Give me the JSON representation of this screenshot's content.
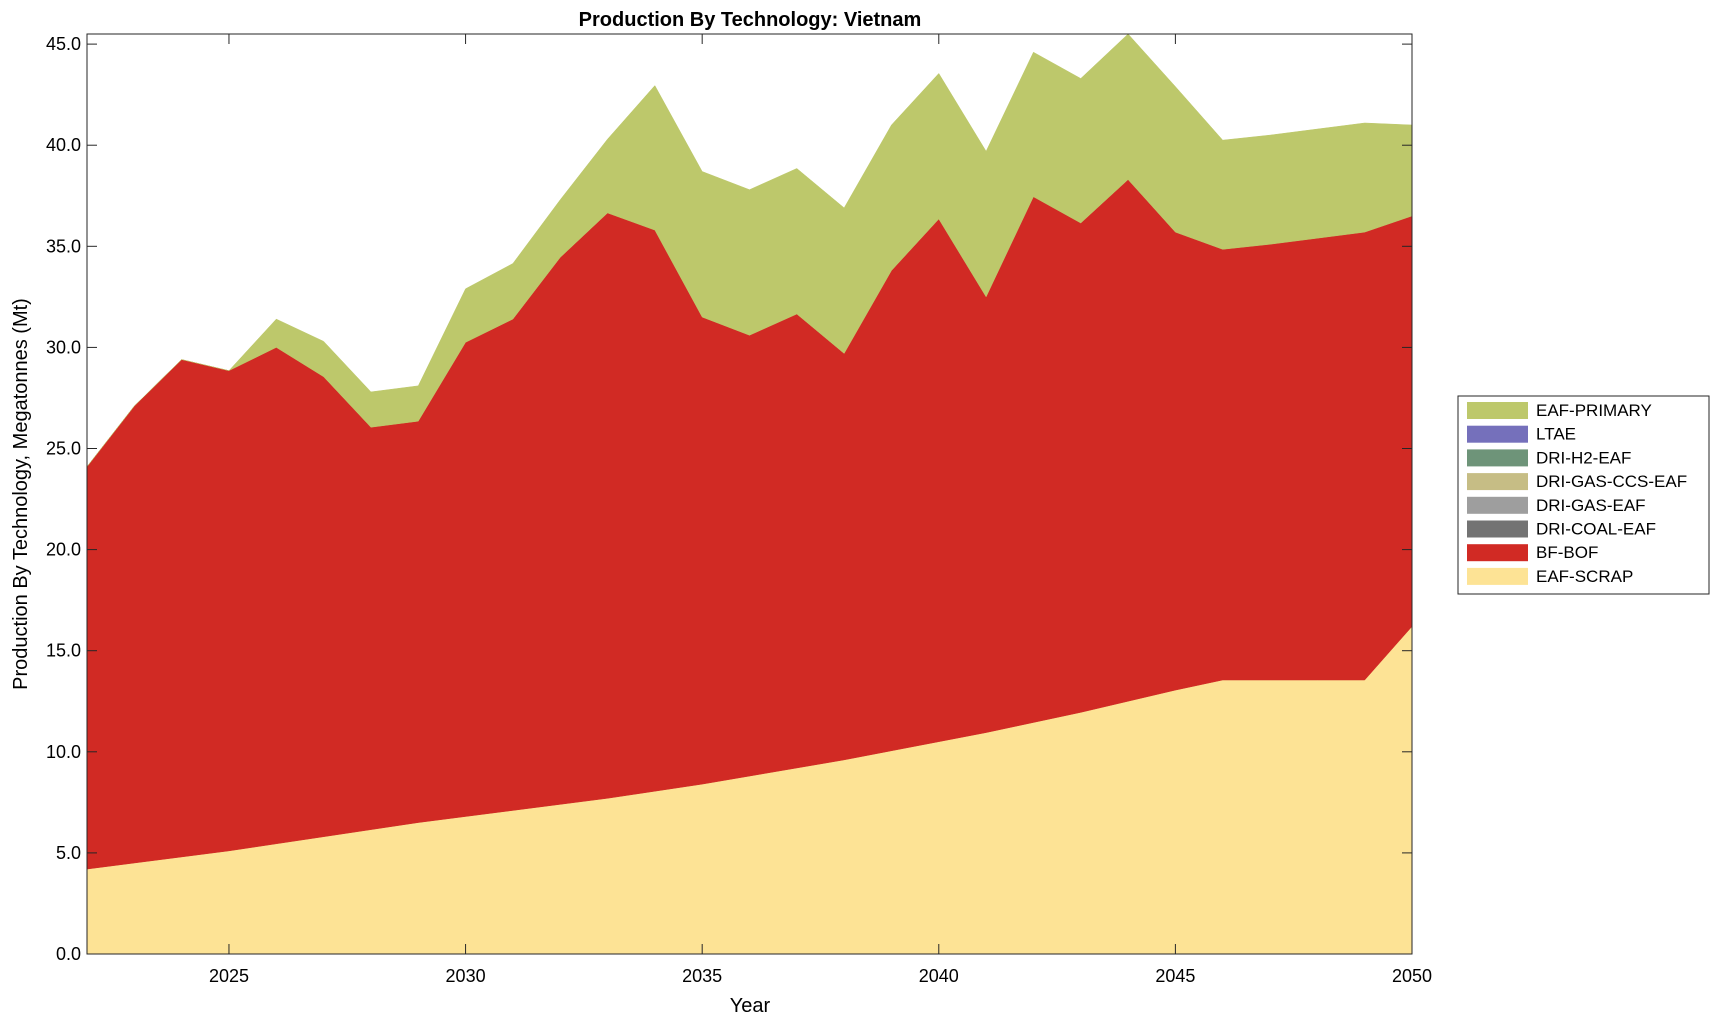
{
  "chart_data": {
    "type": "area",
    "stacked": true,
    "title": "Production By Technology: Vietnam",
    "xlabel": "Year",
    "ylabel": "Production By Technology, Megatonnes (Mt)",
    "xlim": [
      2022,
      2050
    ],
    "ylim": [
      0,
      45.5
    ],
    "xticks": [
      2025,
      2030,
      2035,
      2040,
      2045,
      2050
    ],
    "yticks": [
      0,
      5,
      10,
      15,
      20,
      25,
      30,
      35,
      40,
      45
    ],
    "ytick_labels": [
      "0.0",
      "5.0",
      "10.0",
      "15.0",
      "20.0",
      "25.0",
      "30.0",
      "35.0",
      "40.0",
      "45.0"
    ],
    "x": [
      2022,
      2023,
      2024,
      2025,
      2026,
      2027,
      2028,
      2029,
      2030,
      2031,
      2032,
      2033,
      2034,
      2035,
      2036,
      2037,
      2038,
      2039,
      2040,
      2041,
      2042,
      2043,
      2044,
      2045,
      2046,
      2047,
      2048,
      2049,
      2050
    ],
    "series": [
      {
        "name": "EAF-SCRAP",
        "color": "#fde395",
        "values": [
          4.2,
          4.5,
          4.8,
          5.1,
          5.45,
          5.8,
          6.15,
          6.5,
          6.8,
          7.1,
          7.4,
          7.7,
          8.05,
          8.4,
          8.8,
          9.2,
          9.6,
          10.05,
          10.5,
          10.95,
          11.45,
          11.95,
          12.5,
          13.05,
          13.55,
          13.55,
          13.55,
          13.55,
          16.2
        ]
      },
      {
        "name": "DRI-COAL-EAF",
        "color": "#737373",
        "values": [
          0,
          0,
          0,
          0,
          0,
          0,
          0,
          0,
          0,
          0,
          0,
          0,
          0,
          0,
          0,
          0,
          0,
          0,
          0,
          0,
          0,
          0,
          0,
          0,
          0,
          0,
          0,
          0,
          0
        ]
      },
      {
        "name": "DRI-GAS-EAF",
        "color": "#9e9e9e",
        "values": [
          0,
          0,
          0,
          0,
          0,
          0,
          0,
          0,
          0,
          0,
          0,
          0,
          0,
          0,
          0,
          0,
          0,
          0,
          0,
          0,
          0,
          0,
          0,
          0,
          0,
          0,
          0,
          0,
          0
        ]
      },
      {
        "name": "DRI-GAS-CCS-EAF",
        "color": "#c6bd85",
        "values": [
          0,
          0,
          0,
          0,
          0,
          0,
          0,
          0,
          0,
          0,
          0,
          0,
          0,
          0,
          0,
          0,
          0,
          0,
          0,
          0,
          0,
          0,
          0,
          0,
          0,
          0,
          0,
          0,
          0
        ]
      },
      {
        "name": "DRI-H2-EAF",
        "color": "#6e9479",
        "values": [
          0,
          0,
          0,
          0,
          0,
          0,
          0,
          0,
          0,
          0,
          0,
          0,
          0,
          0,
          0,
          0,
          0,
          0,
          0,
          0,
          0,
          0,
          0,
          0,
          0,
          0,
          0,
          0,
          0
        ]
      },
      {
        "name": "LTAE",
        "color": "#7570bb",
        "values": [
          0,
          0,
          0,
          0,
          0,
          0,
          0,
          0,
          0,
          0,
          0,
          0,
          0,
          0,
          0,
          0,
          0,
          0,
          0,
          0,
          0,
          0,
          0,
          0,
          0,
          0,
          0,
          0,
          0
        ]
      },
      {
        "name": "BF-BOF",
        "color": "#d12a24",
        "values": [
          19.9,
          22.6,
          24.6,
          23.75,
          24.55,
          22.75,
          19.9,
          19.85,
          23.45,
          24.3,
          27.05,
          28.95,
          27.75,
          23.1,
          21.8,
          22.45,
          20.1,
          23.75,
          25.85,
          21.55,
          26.0,
          24.2,
          25.8,
          22.65,
          21.3,
          21.55,
          21.85,
          22.15,
          20.3
        ]
      },
      {
        "name": "EAF-PRIMARY",
        "color": "#bdc86b",
        "values": [
          0,
          0,
          0,
          0,
          1.4,
          1.75,
          1.75,
          1.75,
          2.65,
          2.75,
          2.85,
          3.65,
          7.15,
          7.2,
          7.2,
          7.2,
          7.2,
          7.2,
          7.2,
          7.2,
          7.15,
          7.15,
          7.2,
          7.2,
          5.4,
          5.4,
          5.4,
          5.4,
          4.5
        ]
      }
    ],
    "legend_order": [
      "EAF-PRIMARY",
      "LTAE",
      "DRI-H2-EAF",
      "DRI-GAS-CCS-EAF",
      "DRI-GAS-EAF",
      "DRI-COAL-EAF",
      "BF-BOF",
      "EAF-SCRAP"
    ],
    "legend_position": "right",
    "grid": false
  }
}
